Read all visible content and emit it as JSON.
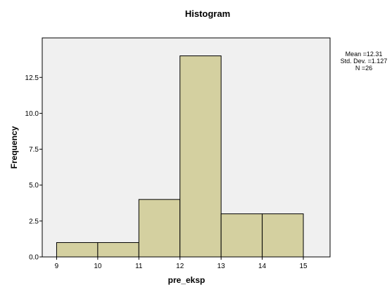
{
  "chart_data": {
    "type": "bar",
    "title": "Histogram",
    "xlabel": "pre_eksp",
    "ylabel": "Frequency",
    "bins": [
      {
        "from": 9,
        "to": 10,
        "count": 1
      },
      {
        "from": 10,
        "to": 11,
        "count": 1
      },
      {
        "from": 11,
        "to": 12,
        "count": 4
      },
      {
        "from": 12,
        "to": 13,
        "count": 14
      },
      {
        "from": 13,
        "to": 14,
        "count": 3
      },
      {
        "from": 14,
        "to": 15,
        "count": 3
      }
    ],
    "xlim": [
      8.65,
      15.65
    ],
    "ylim": [
      0,
      15.25
    ],
    "x_ticks": [
      "9",
      "10",
      "11",
      "12",
      "13",
      "14",
      "15"
    ],
    "y_ticks": [
      "0.0",
      "2.5",
      "5.0",
      "7.5",
      "10.0",
      "12.5"
    ],
    "stats": [
      "Mean =12.31",
      "Std. Dev. =1.127",
      "N =26"
    ],
    "bar_color": "#d4d0a0",
    "plot_background": "#f0f0f0",
    "grid": false
  }
}
